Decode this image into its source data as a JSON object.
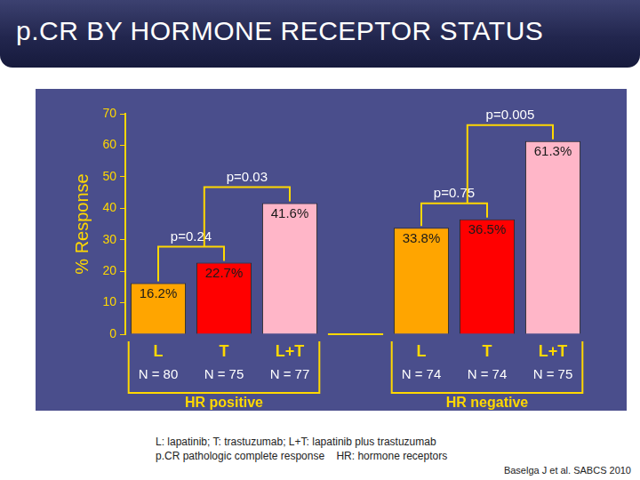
{
  "title": "p.CR BY HORMONE RECEPTOR STATUS",
  "chart_data": {
    "type": "bar",
    "y_label": "% Response",
    "ylim": [
      0,
      70
    ],
    "yticks": [
      0,
      10,
      20,
      30,
      40,
      50,
      60,
      70
    ],
    "grid": false,
    "data_labels": true,
    "groups": [
      {
        "name": "HR positive",
        "categories": [
          "L",
          "T",
          "L+T"
        ],
        "n_labels": [
          "N = 80",
          "N = 75",
          "N = 77"
        ],
        "values": [
          16.2,
          22.7,
          41.6
        ],
        "value_labels": [
          "16.2%",
          "22.7%",
          "41.6%"
        ],
        "colors": [
          "#ffa500",
          "#ff0000",
          "#ffb6c8"
        ],
        "comparisons": [
          {
            "left": [
              0
            ],
            "right": [
              1
            ],
            "label": "p=0.24"
          },
          {
            "left": [
              0,
              1
            ],
            "right": [
              2
            ],
            "label": "p=0.03"
          }
        ]
      },
      {
        "name": "HR negative",
        "categories": [
          "L",
          "T",
          "L+T"
        ],
        "n_labels": [
          "N = 74",
          "N = 74",
          "N = 75"
        ],
        "values": [
          33.8,
          36.5,
          61.3
        ],
        "value_labels": [
          "33.8%",
          "36.5%",
          "61.3%"
        ],
        "colors": [
          "#ffa500",
          "#ff0000",
          "#ffb6c8"
        ],
        "comparisons": [
          {
            "left": [
              0
            ],
            "right": [
              1
            ],
            "label": "p=0.75"
          },
          {
            "left": [
              0,
              1
            ],
            "right": [
              2
            ],
            "label": "p=0.005"
          }
        ]
      }
    ]
  },
  "notes": [
    "L: lapatinib; T: trastuzumab; L+T: lapatinib plus trastuzumab",
    "p.CR pathologic complete response    HR: hormone receptors"
  ],
  "source": "Baselga J et al. SABCS 2010"
}
